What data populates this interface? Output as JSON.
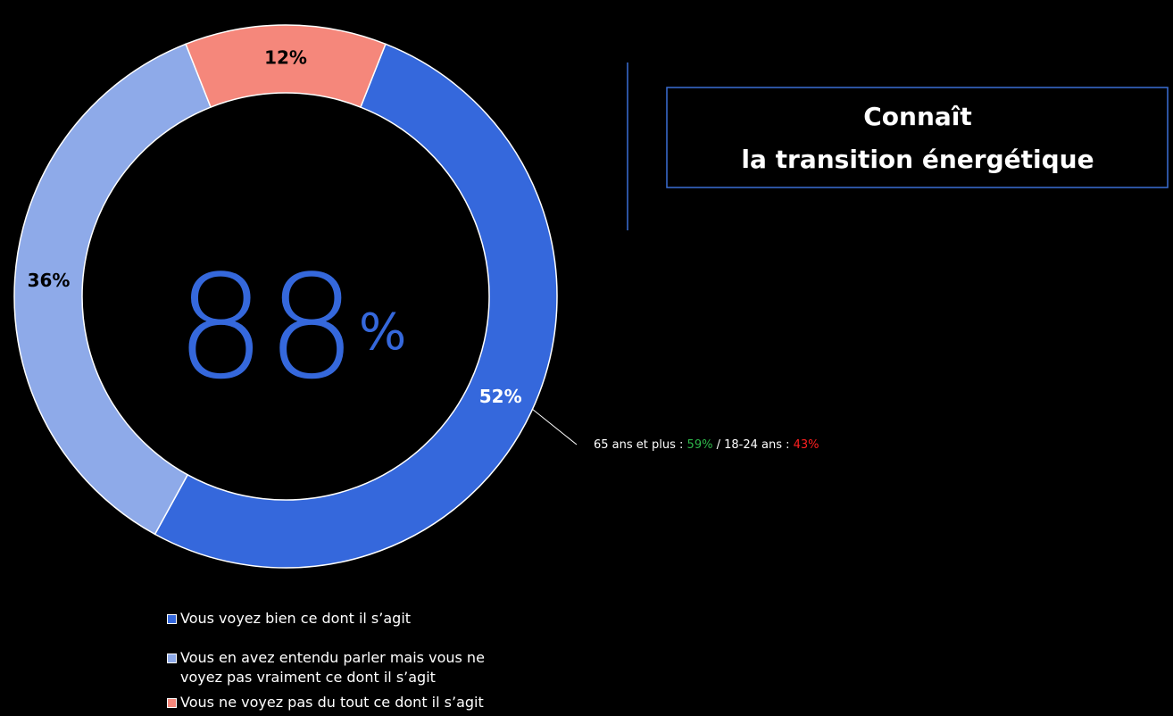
{
  "chart_data": {
    "type": "pie",
    "categories": [
      "Vous voyez bien ce dont il s’agit",
      "Vous en avez entendu parler mais vous ne voyez pas vraiment ce dont il s’agit",
      "Vous ne voyez pas du tout ce dont il s’agit"
    ],
    "values": [
      52,
      36,
      12
    ],
    "value_labels": [
      "52%",
      "36%",
      "12%"
    ],
    "colors": [
      "#3568dc",
      "#8eaae9",
      "#f5877b"
    ],
    "label_colors": [
      "#ffffff",
      "#000000",
      "#000000"
    ],
    "center_value": 88,
    "center_unit": "%",
    "annotation": {
      "parts": [
        {
          "text": "65 ans et plus : ",
          "color": "#ffffff"
        },
        {
          "text": "59%",
          "color": "#2eb84a"
        },
        {
          "text": " / 18-24 ans : ",
          "color": "#ffffff"
        },
        {
          "text": "43%",
          "color": "#ff2020"
        }
      ]
    },
    "box_title": [
      "Connaît",
      "la transition énergétique"
    ]
  }
}
